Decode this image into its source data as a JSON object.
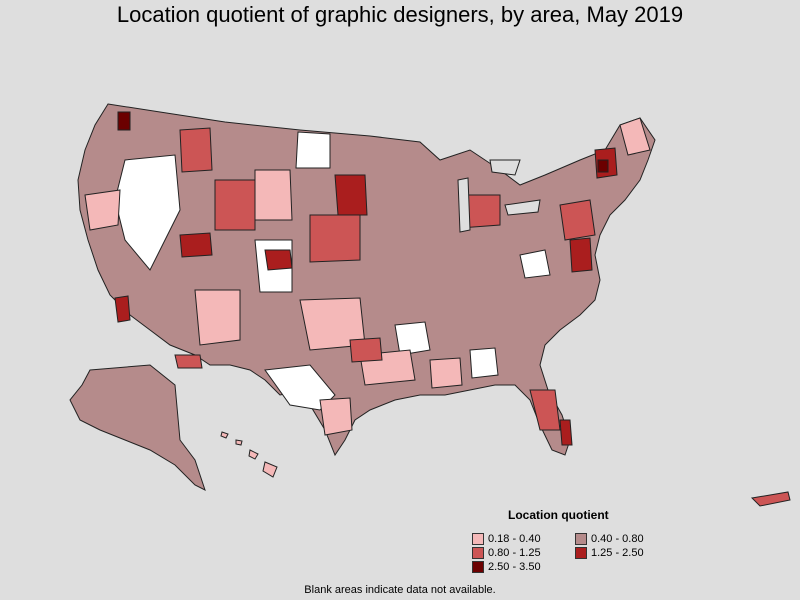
{
  "title": "Location quotient of graphic designers, by area, May 2019",
  "legend": {
    "title": "Location quotient",
    "items": [
      {
        "label": "0.18 - 0.40",
        "color": "#f4b8b8"
      },
      {
        "label": "0.40 - 0.80",
        "color": "#b58b8b"
      },
      {
        "label": "0.80 - 1.25",
        "color": "#cc5555"
      },
      {
        "label": "1.25 - 2.50",
        "color": "#aa1e1e"
      },
      {
        "label": "2.50 - 3.50",
        "color": "#6b0000"
      }
    ]
  },
  "footnote": "Blank areas indicate data not available.",
  "colors": {
    "background": "#dedede",
    "blank": "#ffffff",
    "border": "#222222"
  }
}
